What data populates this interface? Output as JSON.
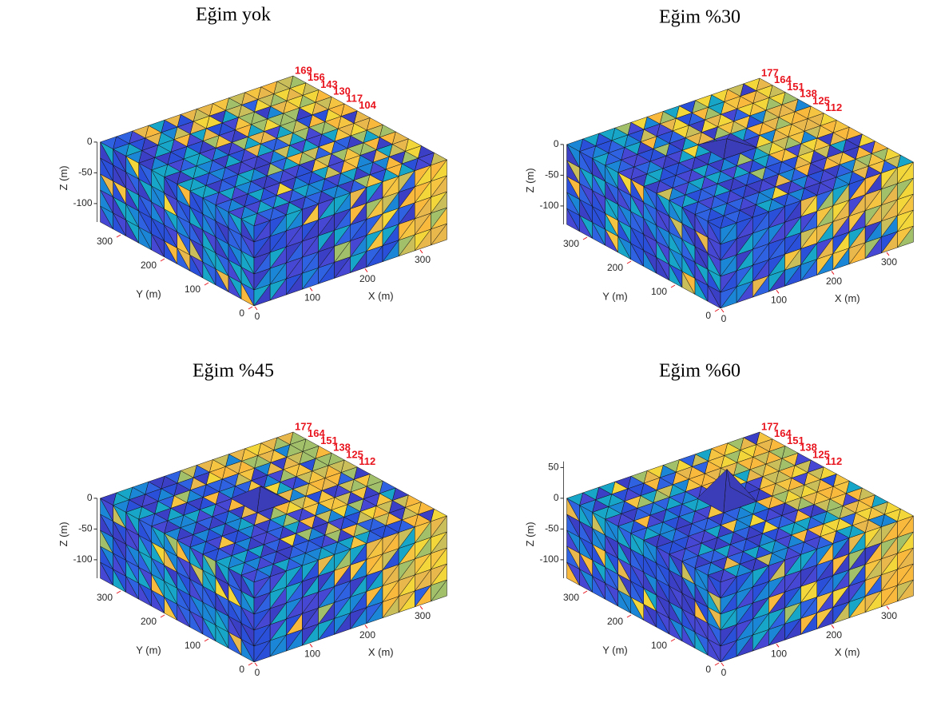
{
  "chart_data": [
    {
      "type": "mesh3d",
      "title": "Eğim yok",
      "xlabel": "X (m)",
      "ylabel": "Y (m)",
      "zlabel": "Z (m)",
      "xlim": [
        0,
        350
      ],
      "ylim": [
        0,
        350
      ],
      "zlim": [
        -130,
        0
      ],
      "xticks": [
        0,
        100,
        200,
        300
      ],
      "yticks": [
        0,
        100,
        200,
        300
      ],
      "zticks": [
        -100,
        -50,
        0
      ],
      "node_labels": [
        "169",
        "156",
        "143",
        "130",
        "117",
        "104"
      ]
    },
    {
      "type": "mesh3d",
      "title": "Eğim %30",
      "xlabel": "X (m)",
      "ylabel": "Y (m)",
      "zlabel": "Z (m)",
      "xlim": [
        0,
        350
      ],
      "ylim": [
        0,
        350
      ],
      "zlim": [
        -130,
        0
      ],
      "xticks": [
        0,
        100,
        200,
        300
      ],
      "yticks": [
        0,
        100,
        200,
        300
      ],
      "zticks": [
        -100,
        -50,
        0
      ],
      "node_labels": [
        "177",
        "164",
        "151",
        "138",
        "125",
        "112"
      ]
    },
    {
      "type": "mesh3d",
      "title": "Eğim %45",
      "xlabel": "X (m)",
      "ylabel": "Y (m)",
      "zlabel": "Z (m)",
      "xlim": [
        0,
        350
      ],
      "ylim": [
        0,
        350
      ],
      "zlim": [
        -130,
        0
      ],
      "xticks": [
        0,
        100,
        200,
        300
      ],
      "yticks": [
        0,
        100,
        200,
        300
      ],
      "zticks": [
        -100,
        -50,
        0
      ],
      "node_labels": [
        "177",
        "164",
        "151",
        "138",
        "125",
        "112"
      ]
    },
    {
      "type": "mesh3d",
      "title": "Eğim %60",
      "xlabel": "X (m)",
      "ylabel": "Y (m)",
      "zlabel": "Z (m)",
      "xlim": [
        0,
        350
      ],
      "ylim": [
        0,
        350
      ],
      "zlim": [
        -130,
        60
      ],
      "xticks": [
        0,
        100,
        200,
        300
      ],
      "yticks": [
        0,
        100,
        200,
        300
      ],
      "zticks": [
        -100,
        -50,
        0,
        50
      ],
      "node_labels": [
        "177",
        "164",
        "151",
        "138",
        "125",
        "112"
      ]
    }
  ]
}
